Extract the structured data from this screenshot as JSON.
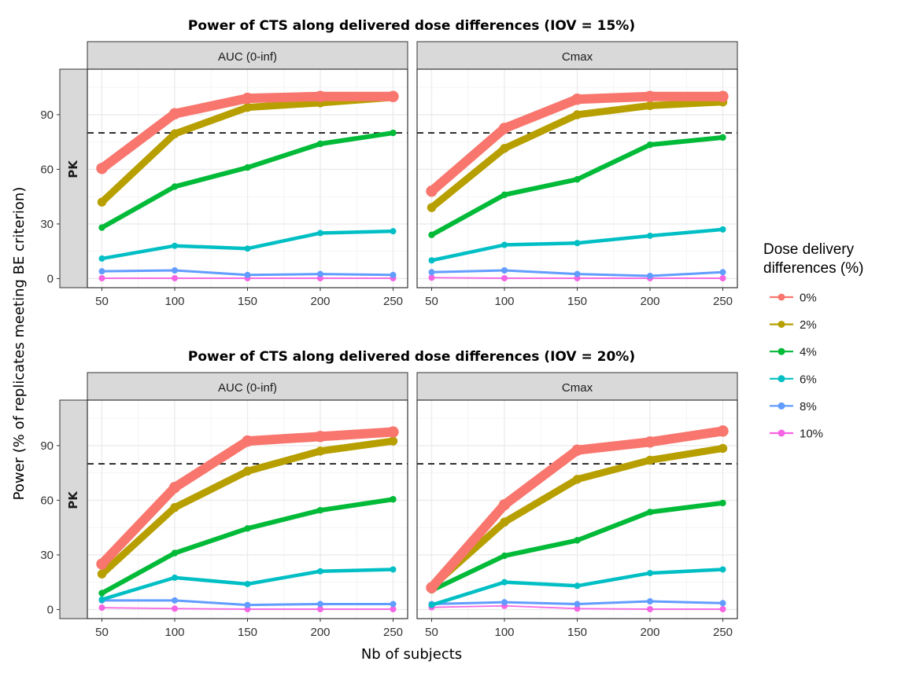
{
  "chart_data": {
    "type": "line",
    "xlabel": "Nb of subjects",
    "ylabel": "Power (% of replicates meeting BE criterion)",
    "x": [
      50,
      100,
      150,
      200,
      250
    ],
    "xticks": [
      "50",
      "100",
      "150",
      "200",
      "250"
    ],
    "yticks": [
      "0",
      "30",
      "60",
      "90"
    ],
    "xlim": [
      40,
      260
    ],
    "ylim": [
      -5,
      115
    ],
    "reference_line": 80,
    "row_strip": "PK",
    "legend": {
      "title_line1": "Dose delivery",
      "title_line2": "differences (%)",
      "entries": [
        {
          "label": "0%",
          "color": "#F8766D",
          "width": 12
        },
        {
          "label": "2%",
          "color": "#B79F00",
          "width": 9
        },
        {
          "label": "4%",
          "color": "#00BA38",
          "width": 6
        },
        {
          "label": "6%",
          "color": "#00BFC4",
          "width": 4.5
        },
        {
          "label": "8%",
          "color": "#619CFF",
          "width": 3
        },
        {
          "label": "10%",
          "color": "#F564E3",
          "width": 1.8
        }
      ]
    },
    "panels": [
      {
        "title": "Power of CTS along delivered dose differences (IOV = 15%)",
        "facets": [
          {
            "strip": "AUC (0-inf)",
            "series": [
              {
                "name": "0%",
                "values": [
                  60.5,
                  90.5,
                  99,
                  100,
                  100
                ]
              },
              {
                "name": "2%",
                "values": [
                  42,
                  79.5,
                  94,
                  96.5,
                  99.5
                ]
              },
              {
                "name": "4%",
                "values": [
                  28,
                  50.5,
                  61,
                  74,
                  80
                ]
              },
              {
                "name": "6%",
                "values": [
                  11,
                  18,
                  16.5,
                  25,
                  26
                ]
              },
              {
                "name": "8%",
                "values": [
                  4,
                  4.5,
                  2,
                  2.5,
                  2
                ]
              },
              {
                "name": "10%",
                "values": [
                  0.2,
                  0.2,
                  0.2,
                  0.2,
                  0.2
                ]
              }
            ]
          },
          {
            "strip": "Cmax",
            "series": [
              {
                "name": "0%",
                "values": [
                  48,
                  82.5,
                  98.5,
                  100,
                  100
                ]
              },
              {
                "name": "2%",
                "values": [
                  39,
                  71.5,
                  90,
                  95,
                  97
                ]
              },
              {
                "name": "4%",
                "values": [
                  24,
                  46,
                  54.5,
                  73.5,
                  77.5
                ]
              },
              {
                "name": "6%",
                "values": [
                  10,
                  18.5,
                  19.5,
                  23.5,
                  27
                ]
              },
              {
                "name": "8%",
                "values": [
                  3.5,
                  4.5,
                  2.5,
                  1.5,
                  3.5
                ]
              },
              {
                "name": "10%",
                "values": [
                  0.5,
                  0.2,
                  0.2,
                  0.2,
                  0.2
                ]
              }
            ]
          }
        ]
      },
      {
        "title": "Power of CTS along delivered dose differences (IOV = 20%)",
        "facets": [
          {
            "strip": "AUC (0-inf)",
            "series": [
              {
                "name": "0%",
                "values": [
                  25,
                  67,
                  92.5,
                  95,
                  97.5
                ]
              },
              {
                "name": "2%",
                "values": [
                  19.5,
                  56,
                  76,
                  87,
                  92.5
                ]
              },
              {
                "name": "4%",
                "values": [
                  9,
                  31,
                  44.5,
                  54.5,
                  60.5
                ]
              },
              {
                "name": "6%",
                "values": [
                  5.5,
                  17.5,
                  14,
                  21,
                  22
                ]
              },
              {
                "name": "8%",
                "values": [
                  5,
                  5,
                  2.5,
                  3,
                  3
                ]
              },
              {
                "name": "10%",
                "values": [
                  1,
                  0.5,
                  0.2,
                  0.2,
                  0.2
                ]
              }
            ]
          },
          {
            "strip": "Cmax",
            "series": [
              {
                "name": "0%",
                "values": [
                  12,
                  57.5,
                  87.5,
                  92,
                  98
                ]
              },
              {
                "name": "2%",
                "values": [
                  12.5,
                  48,
                  71.5,
                  82,
                  88.5
                ]
              },
              {
                "name": "4%",
                "values": [
                  10.5,
                  29.5,
                  38,
                  53.5,
                  58.5
                ]
              },
              {
                "name": "6%",
                "values": [
                  2.5,
                  15,
                  13,
                  20,
                  22
                ]
              },
              {
                "name": "8%",
                "values": [
                  3,
                  4,
                  3,
                  4.5,
                  3.5
                ]
              },
              {
                "name": "10%",
                "values": [
                  1.2,
                  2,
                  0.5,
                  0.2,
                  0.2
                ]
              }
            ]
          }
        ]
      }
    ]
  }
}
